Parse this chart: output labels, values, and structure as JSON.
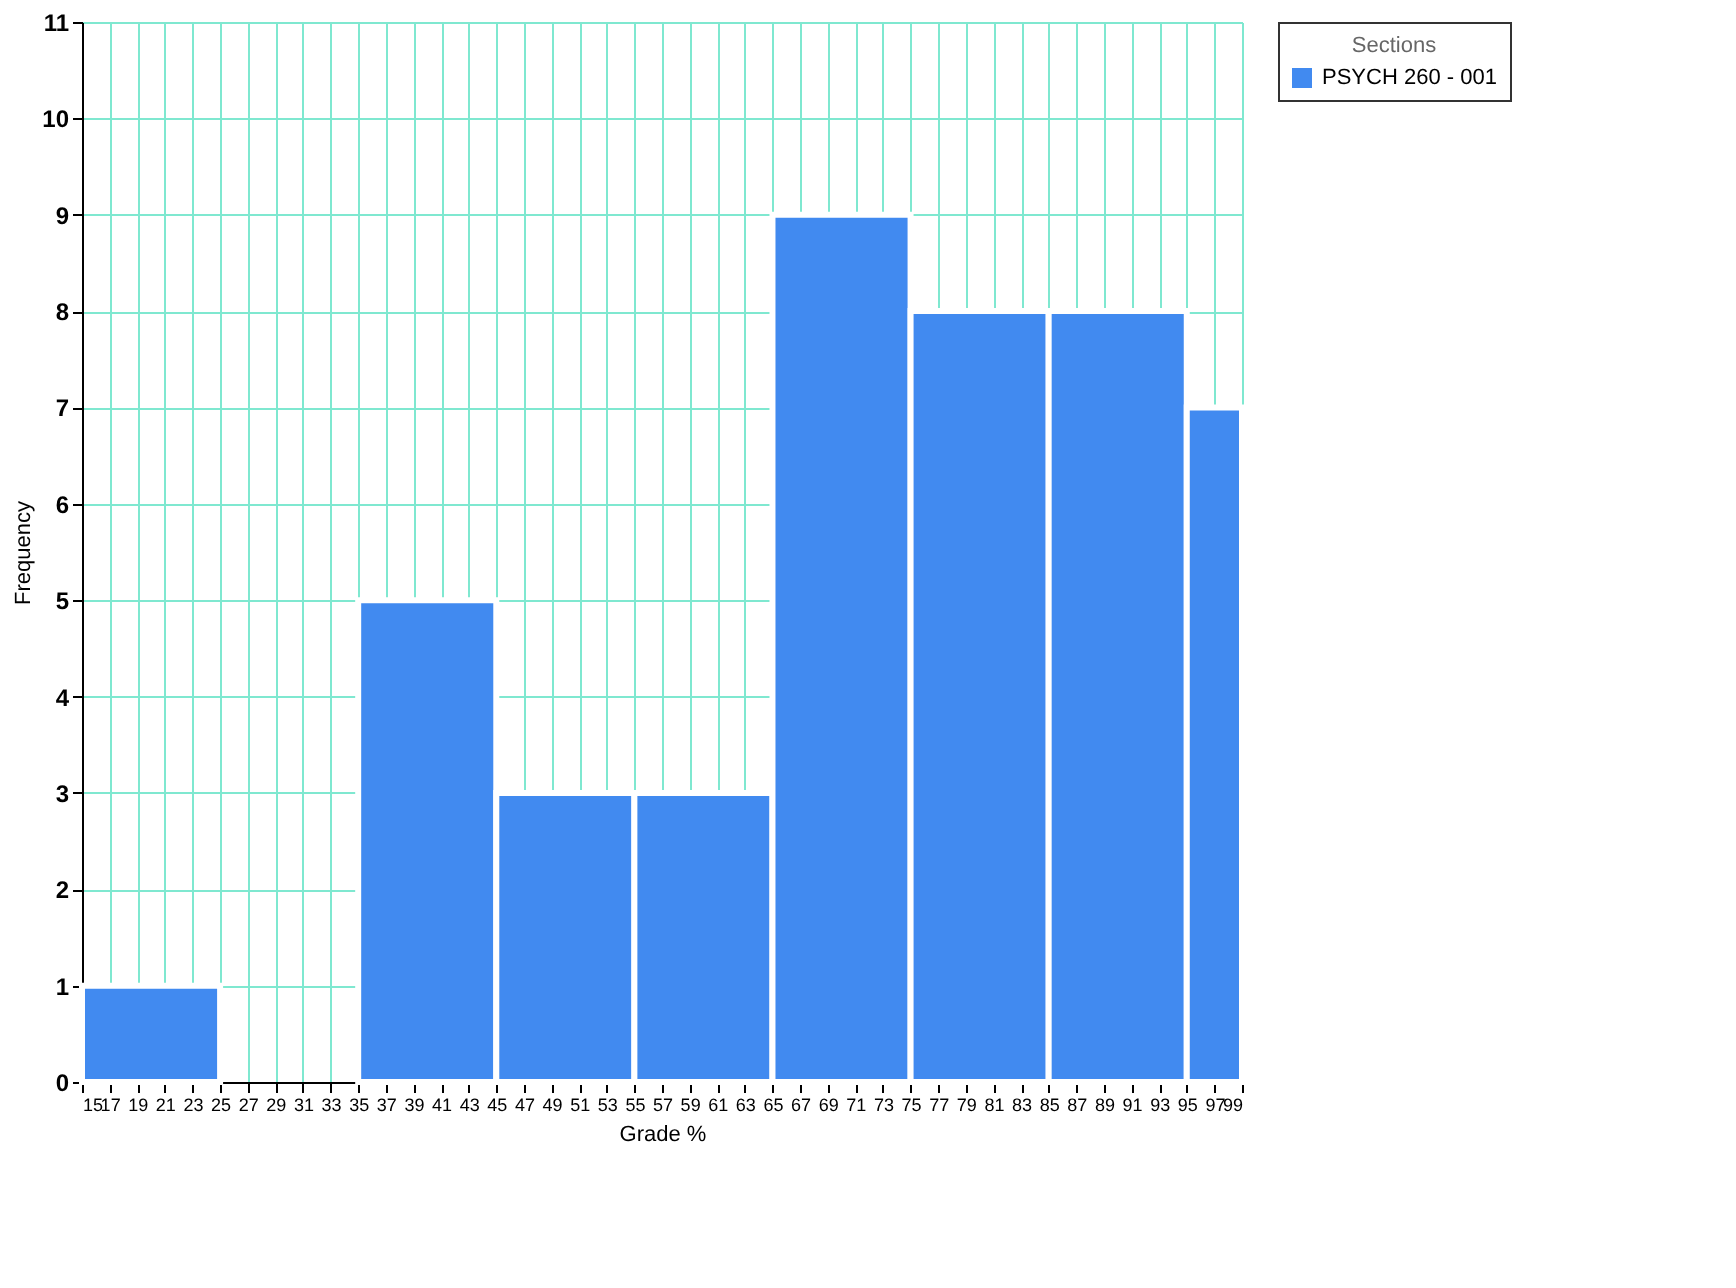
{
  "chart_data": {
    "type": "histogram",
    "xlabel": "Grade %",
    "ylabel": "Frequency",
    "legend_title": "Sections",
    "bins": [
      15,
      25,
      35,
      45,
      55,
      65,
      75,
      85,
      95,
      99
    ],
    "series": [
      {
        "name": "PSYCH 260 - 001",
        "color": "#418af0",
        "values": [
          1,
          0,
          5,
          3,
          3,
          9,
          8,
          8,
          7
        ]
      }
    ],
    "xlim": [
      15,
      99
    ],
    "xticks": [
      15,
      17,
      19,
      21,
      23,
      25,
      27,
      29,
      31,
      33,
      35,
      37,
      39,
      41,
      43,
      45,
      47,
      49,
      51,
      53,
      55,
      57,
      59,
      61,
      63,
      65,
      67,
      69,
      71,
      73,
      75,
      77,
      79,
      81,
      83,
      85,
      87,
      89,
      91,
      93,
      95,
      97,
      99
    ],
    "ylim": [
      0,
      11
    ],
    "yticks": [
      0,
      1,
      2,
      3,
      4,
      5,
      6,
      7,
      8,
      9,
      10,
      11
    ],
    "grid": true,
    "legend": "top right"
  }
}
